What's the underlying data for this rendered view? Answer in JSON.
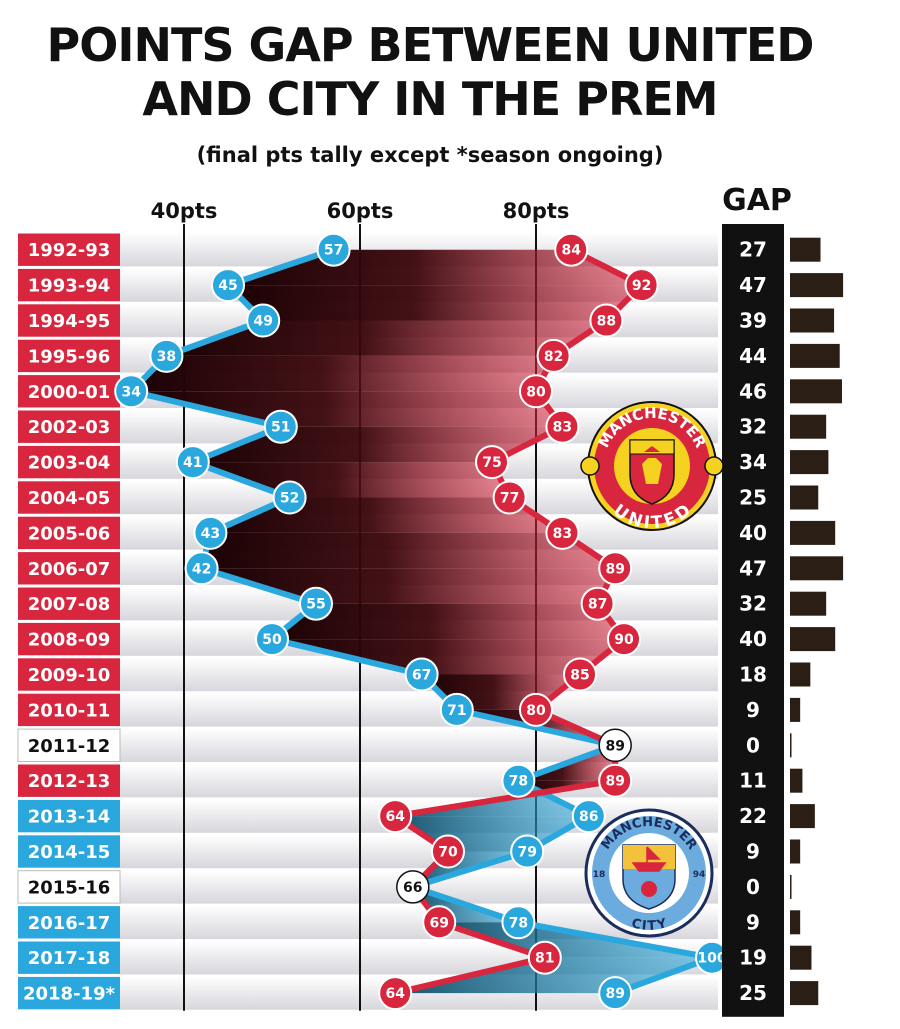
{
  "title": "POINTS GAP BETWEEN UNITED\nAND CITY IN THE PREM",
  "subtitle": "(final pts tally except *season ongoing)",
  "colors": {
    "united": "#d7263d",
    "city": "#2aa7dd",
    "level": "#ffffff",
    "united_shade": "#5a0c12",
    "city_shade": "#1d6f8f",
    "gap_column": "#111111"
  },
  "logos": {
    "united": {
      "top_text": "MANCHESTER",
      "bottom_text": "UNITED",
      "icon": "red-devil-crest-icon"
    },
    "city": {
      "top_text": "MANCHESTER",
      "bottom_text": "CITY",
      "left_year": "18",
      "right_year": "94",
      "icon": "ship-and-rose-crest-icon"
    }
  },
  "chart_data": {
    "type": "line",
    "title": "POINTS GAP BETWEEN UNITED AND CITY IN THE PREM",
    "subtitle": "(final pts tally except *season ongoing)",
    "orientation": "horizontal",
    "x_axis": {
      "ticks": [
        40,
        60,
        80
      ],
      "tick_labels": [
        "40pts",
        "60pts",
        "80pts"
      ],
      "range": [
        20,
        100
      ]
    },
    "gap_header": "GAP",
    "categories": [
      "1992-93",
      "1993-94",
      "1994-95",
      "1995-96",
      "2000-01",
      "2002-03",
      "2003-04",
      "2004-05",
      "2005-06",
      "2006-07",
      "2007-08",
      "2008-09",
      "2009-10",
      "2010-11",
      "2011-12",
      "2012-13",
      "2013-14",
      "2014-15",
      "2015-16",
      "2016-17",
      "2017-18",
      "2018-19*"
    ],
    "series": [
      {
        "name": "United",
        "values": [
          84,
          92,
          88,
          82,
          80,
          83,
          75,
          77,
          83,
          89,
          87,
          90,
          85,
          80,
          89,
          89,
          64,
          70,
          66,
          69,
          81,
          64
        ]
      },
      {
        "name": "City",
        "values": [
          57,
          45,
          49,
          38,
          34,
          51,
          41,
          52,
          43,
          42,
          55,
          50,
          67,
          71,
          89,
          78,
          86,
          79,
          66,
          78,
          100,
          89
        ]
      }
    ],
    "gap": [
      27,
      47,
      39,
      44,
      46,
      32,
      34,
      25,
      40,
      47,
      32,
      40,
      18,
      9,
      0,
      11,
      22,
      9,
      0,
      9,
      19,
      25
    ],
    "leader": [
      "united",
      "united",
      "united",
      "united",
      "united",
      "united",
      "united",
      "united",
      "united",
      "united",
      "united",
      "united",
      "united",
      "united",
      "level",
      "united",
      "city",
      "city",
      "level",
      "city",
      "city",
      "city"
    ]
  }
}
